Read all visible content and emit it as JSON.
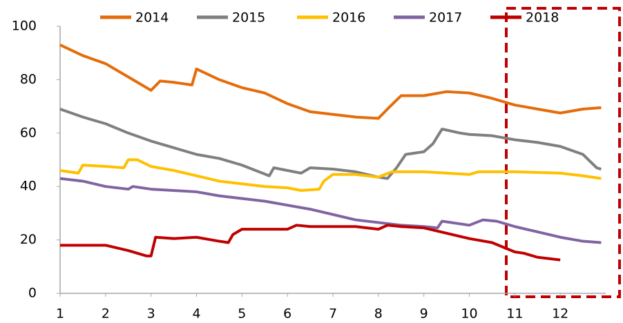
{
  "chart_data": {
    "type": "line",
    "xlim": [
      1,
      13
    ],
    "xticks": [
      1,
      2,
      3,
      4,
      5,
      6,
      7,
      8,
      9,
      10,
      11,
      12
    ],
    "ylim": [
      0,
      100
    ],
    "yticks": [
      0,
      20,
      40,
      60,
      80,
      100
    ],
    "legend": "top",
    "series": [
      {
        "name": "2014",
        "color": "#e46c0a",
        "x": [
          1,
          1.5,
          2,
          2.5,
          2.8,
          3,
          3.2,
          3.5,
          3.9,
          4,
          4.5,
          5,
          5.5,
          6,
          6.5,
          7,
          7.5,
          8,
          8.2,
          8.5,
          9,
          9.5,
          10,
          10.5,
          11,
          11.5,
          12,
          12.5,
          12.9
        ],
        "values": [
          93,
          89,
          86,
          81,
          78,
          76,
          79.5,
          79,
          78,
          84,
          80,
          77,
          75,
          71,
          68,
          67,
          66,
          65.5,
          69,
          74,
          74,
          75.5,
          75,
          73,
          70.5,
          69,
          67.5,
          69,
          69.5
        ]
      },
      {
        "name": "2015",
        "color": "#7f7f7f",
        "x": [
          1,
          1.5,
          2,
          2.5,
          3,
          3.5,
          4,
          4.5,
          5,
          5.3,
          5.6,
          5.7,
          6,
          6.3,
          6.5,
          7,
          7.5,
          8,
          8.2,
          8.4,
          8.6,
          9,
          9.2,
          9.4,
          9.8,
          10,
          10.5,
          11,
          11.5,
          12,
          12.5,
          12.8,
          12.9
        ],
        "values": [
          69,
          66,
          63.5,
          60,
          57,
          54.5,
          52,
          50.5,
          48,
          46,
          44,
          47,
          46,
          45,
          47,
          46.5,
          45.5,
          43.5,
          43,
          47,
          52,
          53,
          56,
          61.5,
          60,
          59.5,
          59,
          57.5,
          56.5,
          55,
          52,
          47,
          46.5
        ]
      },
      {
        "name": "2016",
        "color": "#ffc000",
        "x": [
          1,
          1.4,
          1.5,
          2,
          2.4,
          2.5,
          2.7,
          3,
          3.5,
          4,
          4.5,
          5,
          5.5,
          6,
          6.3,
          6.7,
          6.8,
          7,
          7.5,
          8,
          8.3,
          9,
          9.5,
          10,
          10.2,
          11,
          12,
          12.5,
          12.9
        ],
        "values": [
          46,
          45,
          48,
          47.5,
          47,
          50,
          50,
          47.5,
          46,
          44,
          42,
          41,
          40,
          39.5,
          38.5,
          39,
          42,
          44.5,
          44.5,
          43.5,
          45.5,
          45.5,
          45,
          44.5,
          45.5,
          45.5,
          45,
          44,
          43
        ]
      },
      {
        "name": "2017",
        "color": "#8064a2",
        "x": [
          1,
          1.5,
          2,
          2.5,
          2.6,
          3,
          3.5,
          4,
          4.5,
          5,
          5.5,
          6,
          6.5,
          7,
          7.5,
          8,
          8.5,
          9,
          9.3,
          9.4,
          10,
          10.3,
          10.6,
          11,
          11.5,
          12,
          12.5,
          12.9
        ],
        "values": [
          43,
          42,
          40,
          39,
          40,
          39,
          38.5,
          38,
          36.5,
          35.5,
          34.5,
          33,
          31.5,
          29.5,
          27.5,
          26.5,
          25.5,
          25,
          24.5,
          27,
          25.5,
          27.5,
          27,
          25,
          23,
          21,
          19.5,
          19
        ]
      },
      {
        "name": "2018",
        "color": "#c00000",
        "x": [
          1,
          1.5,
          2,
          2.5,
          2.9,
          3,
          3.1,
          3.5,
          4,
          4.5,
          4.7,
          4.8,
          5,
          5.5,
          6,
          6.2,
          6.5,
          7,
          7.5,
          8,
          8.2,
          8.5,
          9,
          9.5,
          10,
          10.5,
          11,
          11.2,
          11.5,
          12
        ],
        "values": [
          18,
          18,
          18,
          16,
          14,
          14,
          21,
          20.5,
          21,
          19.5,
          19,
          22,
          24,
          24,
          24,
          25.5,
          25,
          25,
          25,
          24,
          25.5,
          25,
          24.5,
          22.5,
          20.5,
          19,
          15.5,
          15,
          13.5,
          12.5
        ]
      }
    ]
  }
}
